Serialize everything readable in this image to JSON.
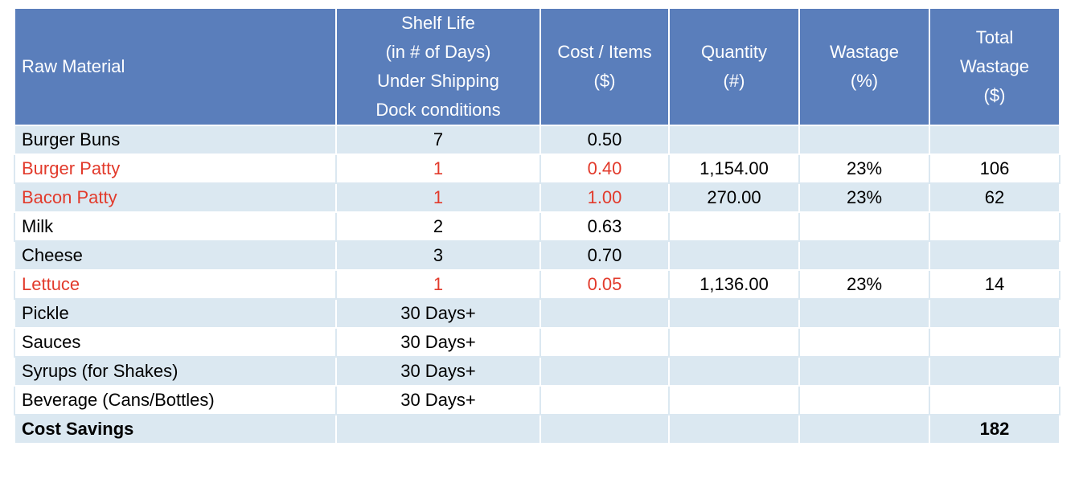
{
  "table": {
    "headers": [
      [
        "Raw Material"
      ],
      [
        "Shelf Life",
        "(in # of Days)",
        "Under Shipping",
        "Dock conditions"
      ],
      [
        "Cost / Items",
        "($)"
      ],
      [
        "Quantity",
        "(#)"
      ],
      [
        "Wastage",
        "(%)"
      ],
      [
        "Total",
        "Wastage",
        "($)"
      ]
    ],
    "rows": [
      {
        "material": "Burger Buns",
        "shelf_life": "7",
        "cost": "0.50",
        "quantity": "",
        "wastage": "",
        "total": "",
        "highlight": false
      },
      {
        "material": "Burger Patty",
        "shelf_life": "1",
        "cost": "0.40",
        "quantity": "1,154.00",
        "wastage": "23%",
        "total": "106",
        "highlight": true
      },
      {
        "material": "Bacon Patty",
        "shelf_life": "1",
        "cost": "1.00",
        "quantity": "270.00",
        "wastage": "23%",
        "total": "62",
        "highlight": true
      },
      {
        "material": "Milk",
        "shelf_life": "2",
        "cost": "0.63",
        "quantity": "",
        "wastage": "",
        "total": "",
        "highlight": false
      },
      {
        "material": "Cheese",
        "shelf_life": "3",
        "cost": "0.70",
        "quantity": "",
        "wastage": "",
        "total": "",
        "highlight": false
      },
      {
        "material": "Lettuce",
        "shelf_life": "1",
        "cost": "0.05",
        "quantity": "1,136.00",
        "wastage": "23%",
        "total": "14",
        "highlight": true
      },
      {
        "material": "Pickle",
        "shelf_life": "30 Days+",
        "cost": "",
        "quantity": "",
        "wastage": "",
        "total": "",
        "highlight": false
      },
      {
        "material": "Sauces",
        "shelf_life": "30 Days+",
        "cost": "",
        "quantity": "",
        "wastage": "",
        "total": "",
        "highlight": false
      },
      {
        "material": "Syrups (for Shakes)",
        "shelf_life": "30 Days+",
        "cost": "",
        "quantity": "",
        "wastage": "",
        "total": "",
        "highlight": false
      },
      {
        "material": "Beverage (Cans/Bottles)",
        "shelf_life": "30 Days+",
        "cost": "",
        "quantity": "",
        "wastage": "",
        "total": "",
        "highlight": false
      }
    ],
    "total_row": {
      "label": "Cost Savings",
      "total": "182"
    }
  },
  "colors": {
    "header_bg": "#5a7ebb",
    "header_text": "#ffffff",
    "row_shade": "#dbe8f1",
    "highlight_text": "#e23a2b"
  }
}
